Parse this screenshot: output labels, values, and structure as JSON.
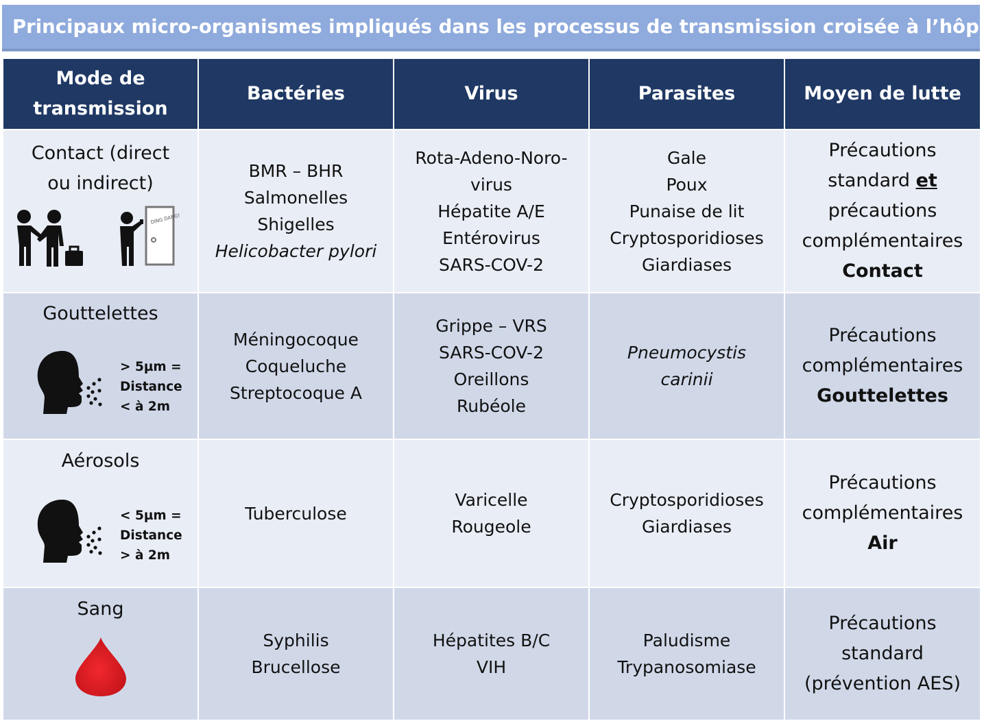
{
  "title": "Principaux micro-organismes impliqués dans les processus de transmission croisée à l’hôpital",
  "headers": {
    "mode": [
      "Mode de",
      "transmission"
    ],
    "bacteries": "Bactéries",
    "virus": "Virus",
    "parasites": "Parasites",
    "lutte": "Moyen de lutte"
  },
  "rows": [
    {
      "mode": [
        "Contact (direct",
        "ou indirect)"
      ],
      "door_sign": "DING DANG!",
      "bacteries": [
        "BMR – BHR",
        "Salmonelles",
        "Shigelles",
        "Helicobacter pylori"
      ],
      "virus": [
        "Rota-Adeno-Noro-",
        "virus",
        "Hépatite A/E",
        "Entérovirus",
        "SARS-COV-2"
      ],
      "parasites": [
        "Gale",
        "Poux",
        "Punaise de lit",
        "Cryptosporidioses",
        "Giardiases"
      ],
      "lutte": [
        "Précautions",
        "standard ",
        "et",
        "précautions",
        "complémentaires",
        "Contact"
      ]
    },
    {
      "mode": [
        "Gouttelettes"
      ],
      "note": [
        "> 5µm =",
        "Distance",
        "< à 2m"
      ],
      "bacteries": [
        "Méningocoque",
        "Coqueluche",
        "Streptocoque A"
      ],
      "virus": [
        "Grippe – VRS",
        "SARS-COV-2",
        "Oreillons",
        "Rubéole"
      ],
      "parasites": [
        "Pneumocystis",
        "carinii"
      ],
      "lutte": [
        "Précautions",
        "complémentaires",
        "Gouttelettes"
      ]
    },
    {
      "mode": [
        "Aérosols"
      ],
      "note": [
        "< 5µm =",
        "Distance",
        "> à 2m"
      ],
      "bacteries": [
        "Tuberculose"
      ],
      "virus": [
        "Varicelle",
        "Rougeole"
      ],
      "parasites": [
        "Cryptosporidioses",
        "Giardiases"
      ],
      "lutte": [
        "Précautions",
        "complémentaires",
        "Air"
      ]
    },
    {
      "mode": [
        "Sang"
      ],
      "bacteries": [
        "Syphilis",
        "Brucellose"
      ],
      "virus": [
        "Hépatites B/C",
        "VIH"
      ],
      "parasites": [
        "Paludisme",
        "Trypanosomiase"
      ],
      "lutte": [
        "Précautions",
        "standard",
        "(prévention AES)"
      ]
    }
  ],
  "colors": {
    "title_bg": "#8FAADC",
    "header_bg": "#1F3864",
    "row_light": "#E9EDF5",
    "row_dark": "#D0D8E8",
    "blood": "#E0191E"
  },
  "icons": [
    "handshake-icon",
    "doorbell-icon",
    "coughing-head-icon",
    "blood-drop-icon"
  ]
}
